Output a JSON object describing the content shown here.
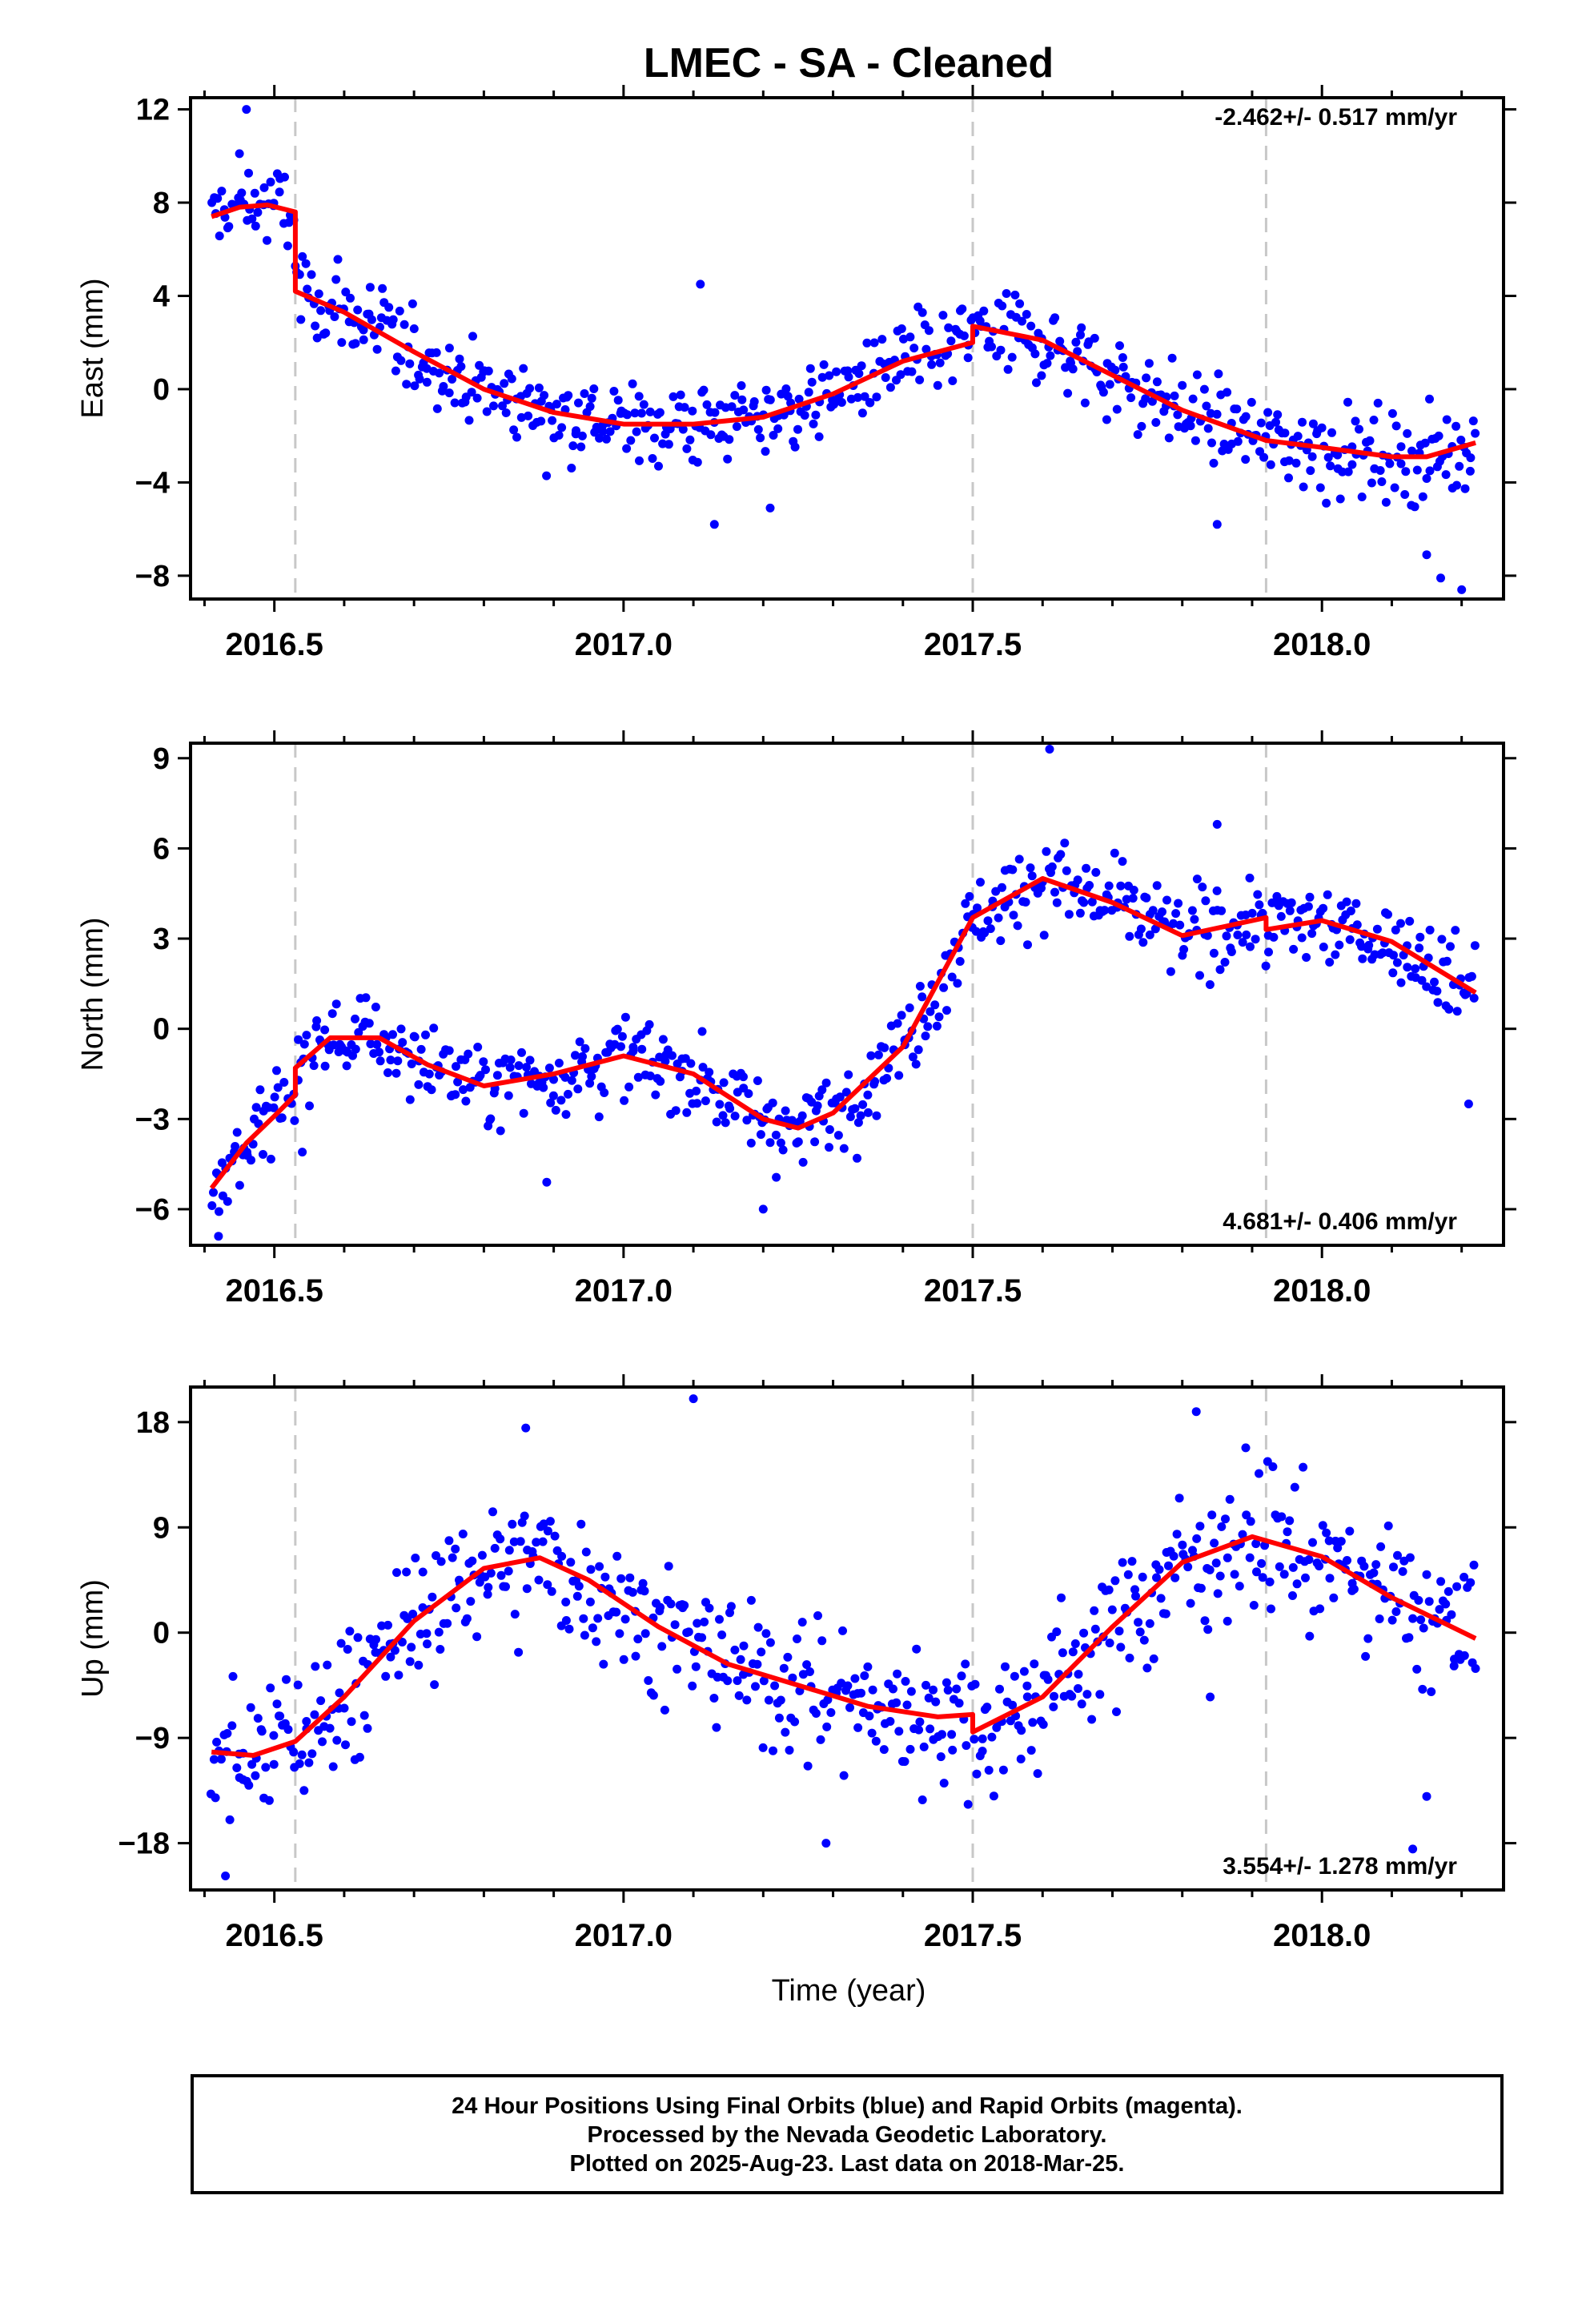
{
  "chart_data": {
    "type": "scatter",
    "title": "LMEC  - SA - Cleaned",
    "xlabel": "Time (year)",
    "xlim": [
      2016.38,
      2018.26
    ],
    "x_ticks": [
      "2016.5",
      "2017.0",
      "2017.5",
      "2018.0"
    ],
    "x_tick_values": [
      2016.5,
      2017.0,
      2017.5,
      2018.0
    ],
    "event_lines": [
      2016.53,
      2017.5,
      2017.92
    ],
    "colors": {
      "points": "#0000ff",
      "model": "#ff0000",
      "event_line": "#c8c8c8",
      "frame": "#000000"
    },
    "panels": [
      {
        "name": "east",
        "ylabel": "East (mm)",
        "ylim": [
          -9,
          12.5
        ],
        "yticks": [
          -8,
          -4,
          0,
          4,
          8,
          12
        ],
        "yticklabels": [
          "−8",
          "−4",
          "0",
          "4",
          "8",
          "12"
        ],
        "rate": "-2.462+/- 0.517 mm/yr",
        "rate_position": "top-right",
        "model_x": [
          2016.41,
          2016.45,
          2016.49,
          2016.53,
          2016.53,
          2016.6,
          2016.7,
          2016.8,
          2016.9,
          2017.0,
          2017.1,
          2017.2,
          2017.3,
          2017.4,
          2017.5,
          2017.5,
          2017.6,
          2017.7,
          2017.8,
          2017.92,
          2018.0,
          2018.1,
          2018.15,
          2018.22
        ],
        "model_y": [
          7.4,
          7.8,
          7.9,
          7.6,
          4.2,
          3.3,
          1.6,
          0.0,
          -1.0,
          -1.5,
          -1.5,
          -1.2,
          -0.2,
          1.2,
          2.0,
          2.7,
          2.1,
          0.6,
          -0.9,
          -2.2,
          -2.5,
          -2.9,
          -2.9,
          -2.3
        ],
        "points": {
          "count": 620,
          "noise": 1.3,
          "outliers": [
            [
              2016.46,
              12.0
            ],
            [
              2016.45,
              10.1
            ],
            [
              2017.11,
              4.5
            ],
            [
              2017.13,
              -5.8
            ],
            [
              2017.21,
              -5.1
            ],
            [
              2017.85,
              -5.8
            ],
            [
              2018.17,
              -8.1
            ],
            [
              2018.2,
              -8.6
            ],
            [
              2018.15,
              -7.1
            ]
          ]
        }
      },
      {
        "name": "north",
        "ylabel": "North (mm)",
        "ylim": [
          -7.2,
          9.5
        ],
        "yticks": [
          -6,
          -3,
          0,
          3,
          6,
          9
        ],
        "yticklabels": [
          "−6",
          "−3",
          "0",
          "3",
          "6",
          "9"
        ],
        "rate": "4.681+/- 0.406 mm/yr",
        "rate_position": "bottom-right",
        "model_x": [
          2016.41,
          2016.46,
          2016.5,
          2016.53,
          2016.53,
          2016.58,
          2016.65,
          2016.72,
          2016.8,
          2016.9,
          2017.0,
          2017.1,
          2017.2,
          2017.25,
          2017.3,
          2017.4,
          2017.5,
          2017.6,
          2017.7,
          2017.8,
          2017.92,
          2017.92,
          2018.0,
          2018.1,
          2018.22
        ],
        "model_y": [
          -5.3,
          -3.8,
          -2.9,
          -2.2,
          -1.3,
          -0.3,
          -0.3,
          -1.2,
          -1.9,
          -1.5,
          -0.9,
          -1.5,
          -3.0,
          -3.3,
          -2.8,
          -0.6,
          3.7,
          5.0,
          4.2,
          3.1,
          3.7,
          3.3,
          3.6,
          2.9,
          1.2
        ],
        "points": {
          "count": 620,
          "noise": 1.0,
          "outliers": [
            [
              2017.61,
              9.3
            ],
            [
              2017.85,
              6.8
            ],
            [
              2016.89,
              -5.1
            ],
            [
              2017.2,
              -6.0
            ],
            [
              2016.42,
              -6.9
            ],
            [
              2018.21,
              -2.5
            ],
            [
              2016.54,
              -4.1
            ]
          ]
        }
      },
      {
        "name": "up",
        "ylabel": "Up (mm)",
        "ylim": [
          -22,
          21
        ],
        "yticks": [
          -18,
          -9,
          0,
          9,
          18
        ],
        "yticklabels": [
          "−18",
          "−9",
          "0",
          "9",
          "18"
        ],
        "rate": "3.554+/- 1.278 mm/yr",
        "rate_position": "bottom-right",
        "model_x": [
          2016.41,
          2016.47,
          2016.53,
          2016.6,
          2016.7,
          2016.8,
          2016.88,
          2016.95,
          2017.05,
          2017.15,
          2017.25,
          2017.35,
          2017.45,
          2017.5,
          2017.5,
          2017.6,
          2017.7,
          2017.8,
          2017.9,
          2018.0,
          2018.1,
          2018.22
        ],
        "model_y": [
          -10.2,
          -10.5,
          -9.3,
          -5.5,
          1.0,
          5.5,
          6.4,
          4.5,
          0.5,
          -2.7,
          -4.5,
          -6.3,
          -7.2,
          -7.0,
          -8.5,
          -5.5,
          0.5,
          6.0,
          8.2,
          6.5,
          3.0,
          -0.5
        ],
        "points": {
          "count": 620,
          "noise": 4.2,
          "outliers": [
            [
              2017.1,
              20.0
            ],
            [
              2016.86,
              17.5
            ],
            [
              2017.82,
              18.9
            ],
            [
              2016.43,
              -20.8
            ],
            [
              2017.29,
              -18.0
            ],
            [
              2018.15,
              -14.0
            ],
            [
              2018.13,
              -18.5
            ],
            [
              2017.84,
              -5.5
            ]
          ]
        }
      }
    ]
  },
  "footer": {
    "line1": "24 Hour Positions Using Final Orbits (blue) and Rapid Orbits (magenta).",
    "line2": "Processed by the Nevada Geodetic Laboratory.",
    "line3": "Plotted on 2025-Aug-23. Last data on 2018-Mar-25."
  }
}
